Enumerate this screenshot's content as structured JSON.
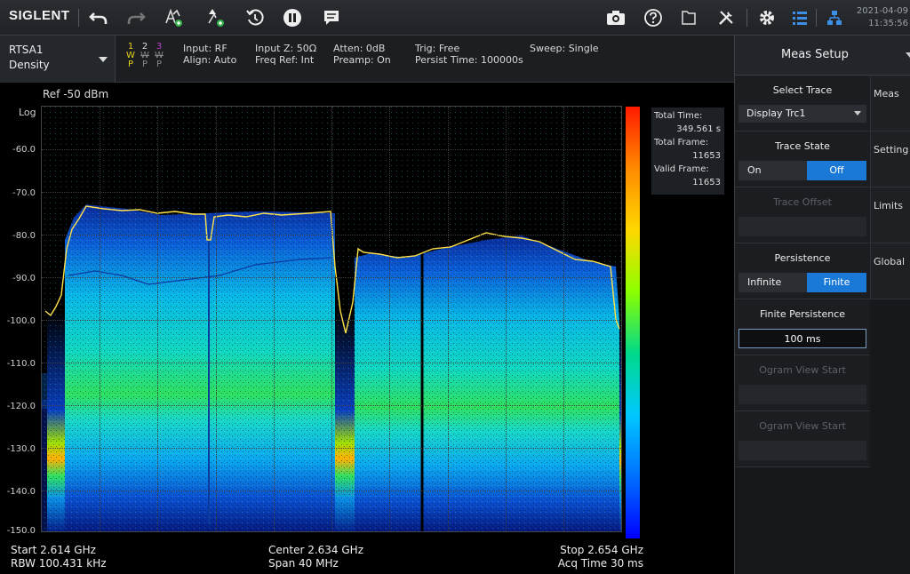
{
  "toolbar": {
    "brand": "SIGLENT",
    "date": "2021-04-09",
    "time": "11:35:56"
  },
  "icons": [
    "undo-icon",
    "redo-icon",
    "marker-add-icon",
    "peak-marker-icon",
    "reset-icon",
    "pause-icon",
    "message-icon",
    "camera-icon",
    "help-icon",
    "file-icon",
    "tools-icon",
    "settings-icon",
    "menu-icon",
    "network-icon"
  ],
  "mode": {
    "name": "RTSA1",
    "view": "Density"
  },
  "traces": [
    {
      "num": "1",
      "type": "W",
      "det": "P",
      "color": "#e6d21a"
    },
    {
      "num": "2",
      "type": "W",
      "det": "P",
      "color": "#9a9a9a"
    },
    {
      "num": "3",
      "type": "W",
      "det": "P",
      "color": "#c040c8"
    }
  ],
  "info": {
    "input": "Input: RF",
    "align": "Align: Auto",
    "input_z": "Input Z: 50Ω",
    "freq_ref": "Freq Ref: Int",
    "atten": "Atten: 0dB",
    "preamp": "Preamp: On",
    "trig": "Trig: Free",
    "persist": "Persist Time: 100000s",
    "sweep": "Sweep: Single"
  },
  "plot": {
    "ref": "Ref  -50 dBm",
    "scale": "Log",
    "y_ticks": [
      "-60.0",
      "-70.0",
      "-80.0",
      "-90.0",
      "-100.0",
      "-110.0",
      "-120.0",
      "-130.0",
      "-140.0",
      "-150.0"
    ],
    "stats": {
      "total_time_label": "Total Time:",
      "total_time": "349.561 s",
      "total_frame_label": "Total Frame:",
      "total_frame": "11653",
      "valid_frame_label": "Valid Frame:",
      "valid_frame": "11653"
    },
    "start": "Start 2.614 GHz",
    "rbw": "RBW 100.431 kHz",
    "center": "Center  2.634 GHz",
    "span": "Span  40 MHz",
    "stop": "Stop  2.654 GHz",
    "acq": "Acq Time  30 ms"
  },
  "panel": {
    "title": "Meas Setup",
    "select_trace": "Select Trace",
    "display_trace": "Display Trc1",
    "trace_state": "Trace State",
    "on": "On",
    "off": "Off",
    "trace_offset": "Trace Offset",
    "persistence": "Persistence",
    "infinite": "Infinite",
    "finite": "Finite",
    "finite_persistence": "Finite Persistence",
    "finite_value": "100 ms",
    "ogram_view_start_1": "Ogram View Start",
    "ogram_view_start_2": "Ogram View Start",
    "tabs": [
      "Meas",
      "Setting",
      "Limits",
      "Global"
    ]
  }
}
